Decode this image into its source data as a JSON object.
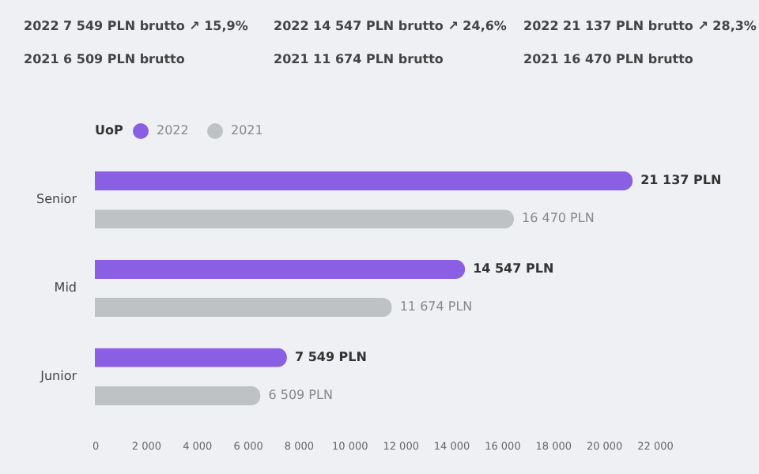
{
  "chart_data": {
    "type": "bar",
    "orientation": "horizontal",
    "legend_title": "UoP",
    "legend": "top",
    "categories": [
      "Senior",
      "Mid",
      "Junior"
    ],
    "series": [
      {
        "name": "2022",
        "color": "#8a5fe3",
        "values": [
          21137,
          14547,
          7549
        ],
        "value_labels": [
          "21 137 PLN",
          "14 547 PLN",
          "7 549 PLN"
        ]
      },
      {
        "name": "2021",
        "color": "#bfc2c5",
        "values": [
          16470,
          11674,
          6509
        ],
        "value_labels": [
          "16 470 PLN",
          "11 674 PLN",
          "6 509 PLN"
        ]
      }
    ],
    "xlim": [
      0,
      22000
    ],
    "xticks": [
      0,
      {
        "value": 2000,
        "label": "2 000"
      },
      {
        "value": 4000,
        "label": "4 000"
      },
      {
        "value": 6000,
        "label": "6 000"
      },
      {
        "value": 8000,
        "label": "8 000"
      },
      {
        "value": 10000,
        "label": "10 000"
      },
      {
        "value": 12000,
        "label": "12 000"
      },
      {
        "value": 14000,
        "label": "14 000"
      },
      {
        "value": 16000,
        "label": "16 000"
      },
      {
        "value": 18000,
        "label": "18 000"
      },
      {
        "value": 20000,
        "label": "20 000"
      },
      {
        "value": 22000,
        "label": "22 000"
      }
    ],
    "annotations": [
      "2022  7 549 PLN brutto  ↗ 15,9%",
      "2021  6 509 PLN brutto",
      "2022  14 547 PLN brutto  ↗ 24,6%",
      "2021  11 674 PLN brutto",
      "2022  21 137 PLN brutto  ↗ 28,3%",
      "2021  16 470 PLN brutto"
    ]
  }
}
